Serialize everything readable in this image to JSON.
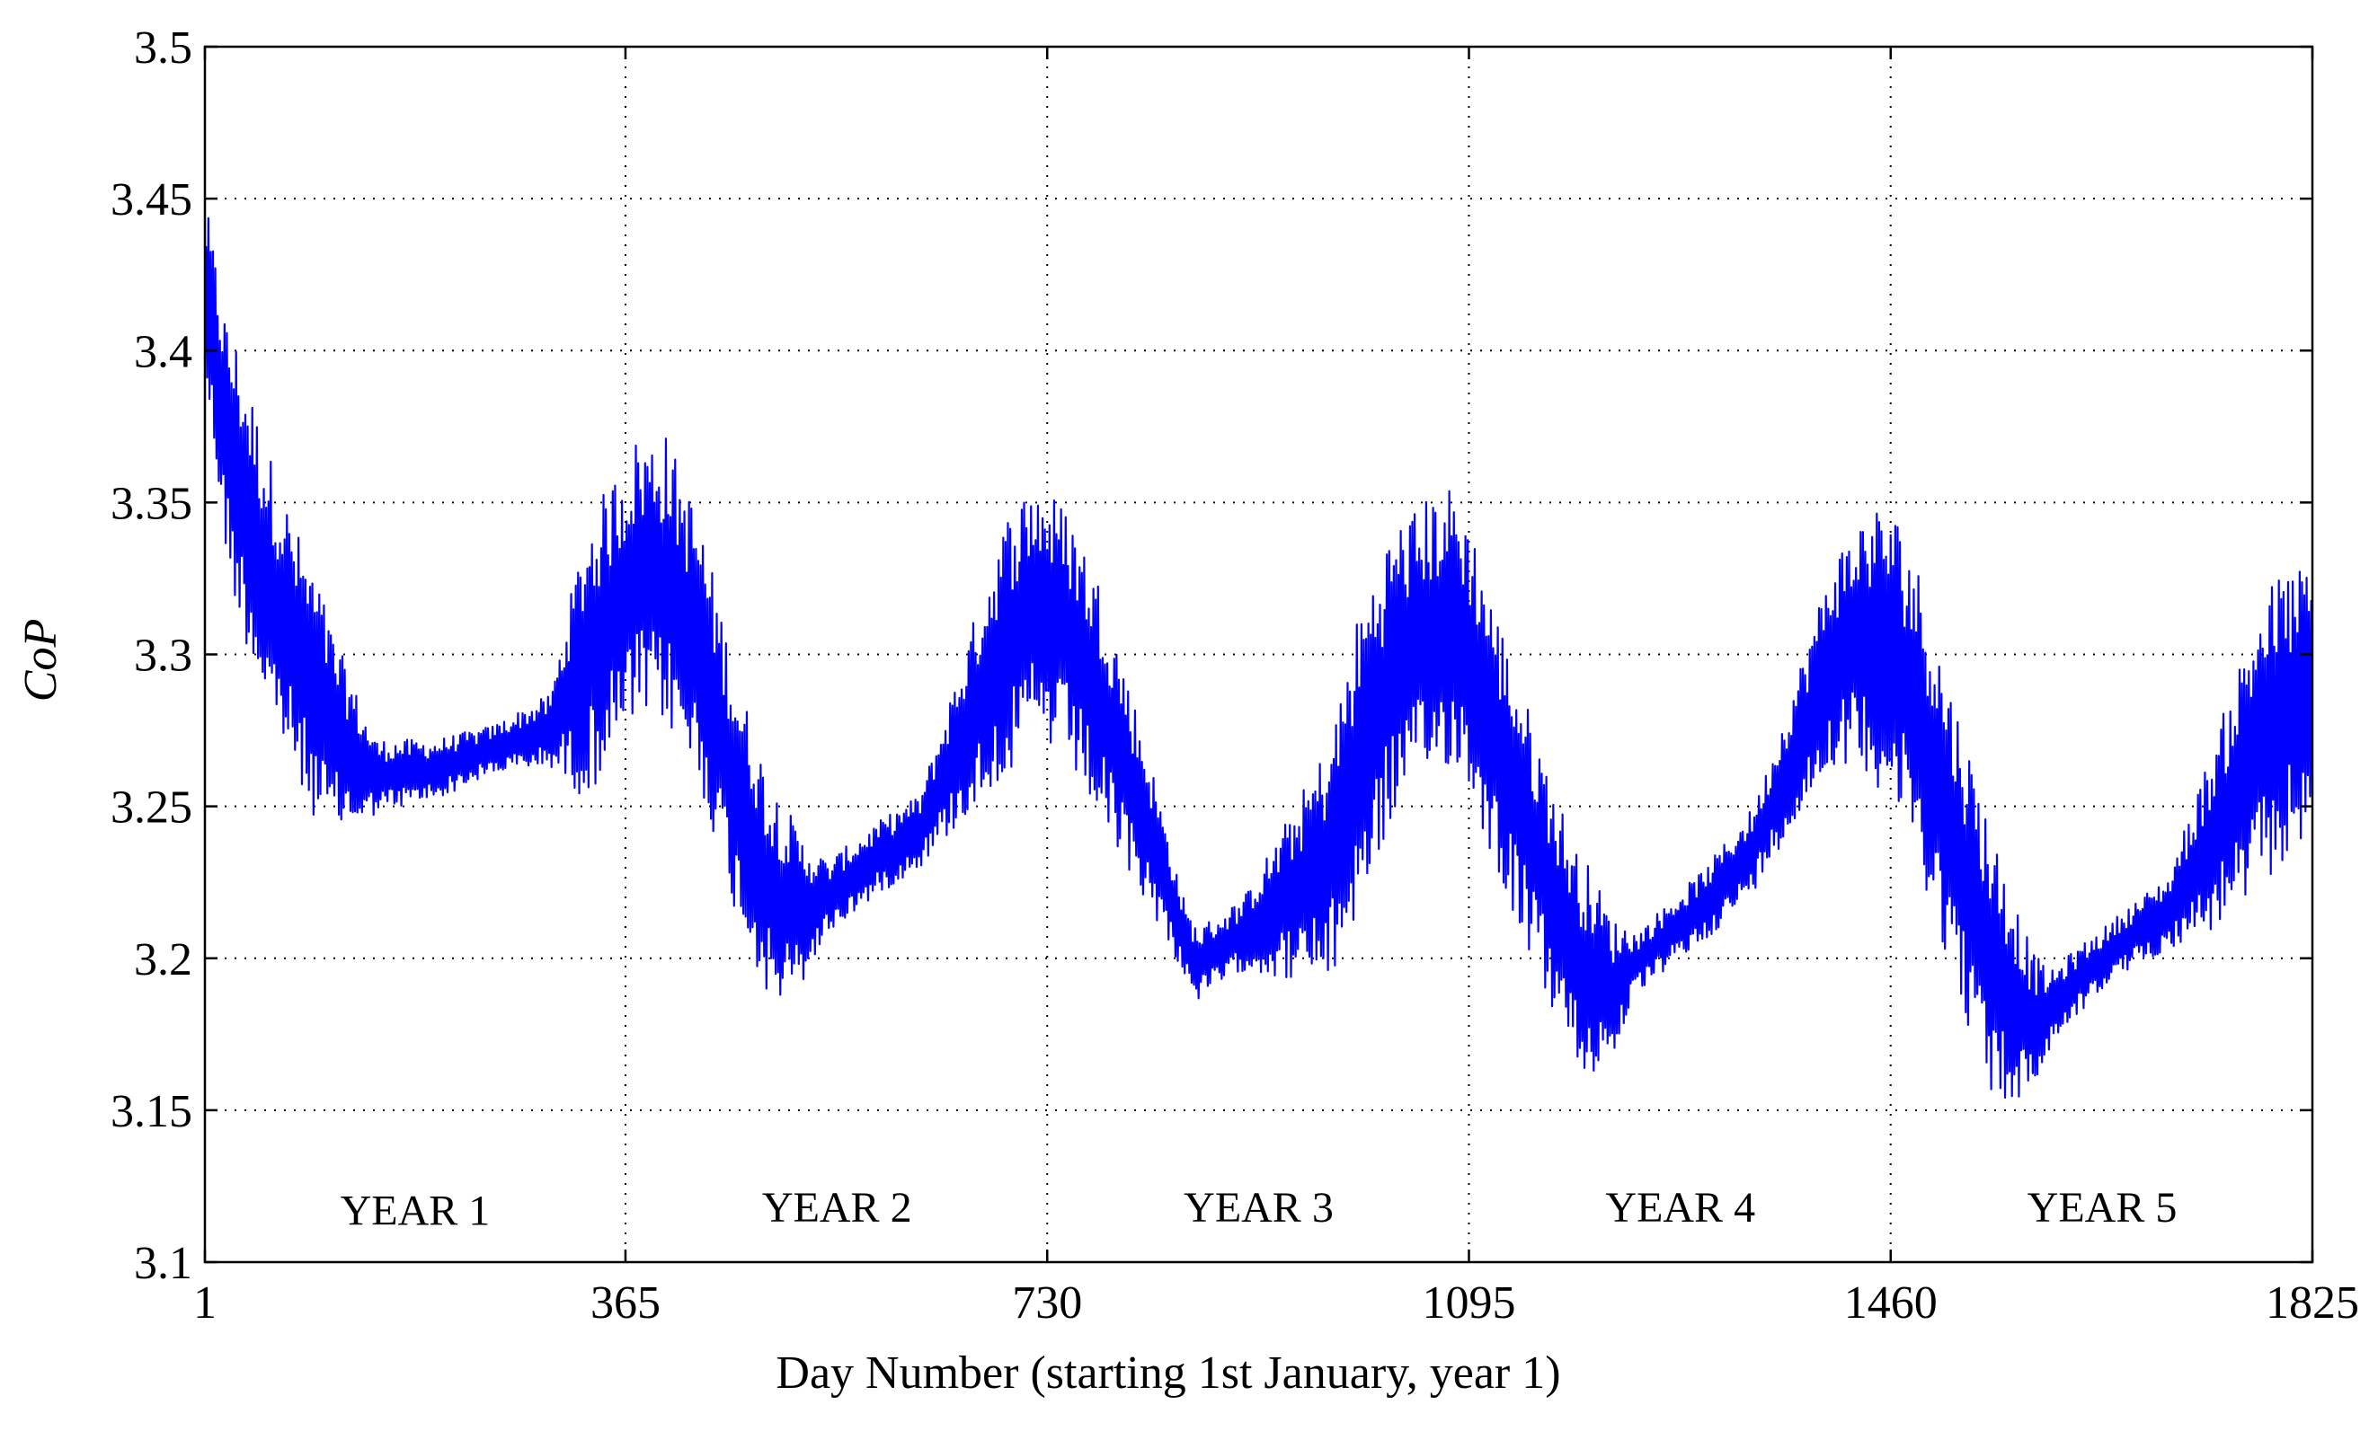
{
  "chart_data": {
    "type": "line",
    "title": "",
    "xlabel": "Day Number (starting 1st January, year 1)",
    "ylabel": "CoP",
    "xlim": [
      1,
      1825
    ],
    "ylim": [
      3.1,
      3.5
    ],
    "x_ticks": [
      1,
      365,
      730,
      1095,
      1460,
      1825
    ],
    "x_tick_labels": [
      "1",
      "365",
      "730",
      "1095",
      "1460",
      "1825"
    ],
    "y_ticks": [
      3.1,
      3.15,
      3.2,
      3.25,
      3.3,
      3.35,
      3.4,
      3.45,
      3.5
    ],
    "y_tick_labels": [
      "3.1",
      "3.15",
      "3.2",
      "3.25",
      "3.3",
      "3.35",
      "3.4",
      "3.45",
      "3.5"
    ],
    "grid": true,
    "line_color": "#0000FF",
    "annotations": [
      {
        "text": "YEAR 1",
        "x": 183,
        "y": 3.117
      },
      {
        "text": "YEAR 2",
        "x": 548,
        "y": 3.118
      },
      {
        "text": "YEAR 3",
        "x": 913,
        "y": 3.118
      },
      {
        "text": "YEAR 4",
        "x": 1278,
        "y": 3.118
      },
      {
        "text": "YEAR 5",
        "x": 1643,
        "y": 3.118
      }
    ],
    "series": [
      {
        "name": "CoP",
        "trend_x": [
          1,
          20,
          50,
          80,
          110,
          140,
          150,
          200,
          260,
          300,
          320,
          350,
          375,
          400,
          430,
          460,
          490,
          515,
          540,
          580,
          620,
          660,
          690,
          720,
          750,
          780,
          820,
          850,
          860,
          900,
          940,
          975,
          1000,
          1030,
          1060,
          1080,
          1095,
          1120,
          1160,
          1190,
          1220,
          1230,
          1260,
          1300,
          1340,
          1380,
          1410,
          1440,
          1460,
          1480,
          1510,
          1550,
          1580,
          1590,
          1620,
          1660,
          1700,
          1740,
          1780,
          1800,
          1825
        ],
        "trend_y": [
          3.42,
          3.37,
          3.33,
          3.3,
          3.275,
          3.262,
          3.26,
          3.262,
          3.27,
          3.275,
          3.29,
          3.31,
          3.325,
          3.325,
          3.3,
          3.255,
          3.222,
          3.215,
          3.22,
          3.232,
          3.242,
          3.275,
          3.3,
          3.315,
          3.305,
          3.28,
          3.24,
          3.205,
          3.198,
          3.208,
          3.22,
          3.232,
          3.265,
          3.295,
          3.305,
          3.31,
          3.3,
          3.27,
          3.228,
          3.198,
          3.19,
          3.195,
          3.205,
          3.218,
          3.235,
          3.27,
          3.298,
          3.305,
          3.3,
          3.285,
          3.245,
          3.195,
          3.18,
          3.18,
          3.192,
          3.205,
          3.215,
          3.24,
          3.27,
          3.28,
          3.285
        ],
        "amplitude_x": [
          1,
          30,
          100,
          150,
          250,
          300,
          330,
          400,
          500,
          540,
          620,
          700,
          780,
          850,
          900,
          1000,
          1095,
          1200,
          1240,
          1300,
          1350,
          1460,
          1550,
          1600,
          1650,
          1700,
          1780,
          1825
        ],
        "amplitude_y": [
          0.03,
          0.045,
          0.04,
          0.012,
          0.008,
          0.012,
          0.045,
          0.048,
          0.035,
          0.012,
          0.012,
          0.045,
          0.04,
          0.012,
          0.012,
          0.05,
          0.045,
          0.035,
          0.01,
          0.012,
          0.015,
          0.05,
          0.045,
          0.012,
          0.01,
          0.012,
          0.05,
          0.045
        ],
        "n_points": 1825
      }
    ]
  }
}
